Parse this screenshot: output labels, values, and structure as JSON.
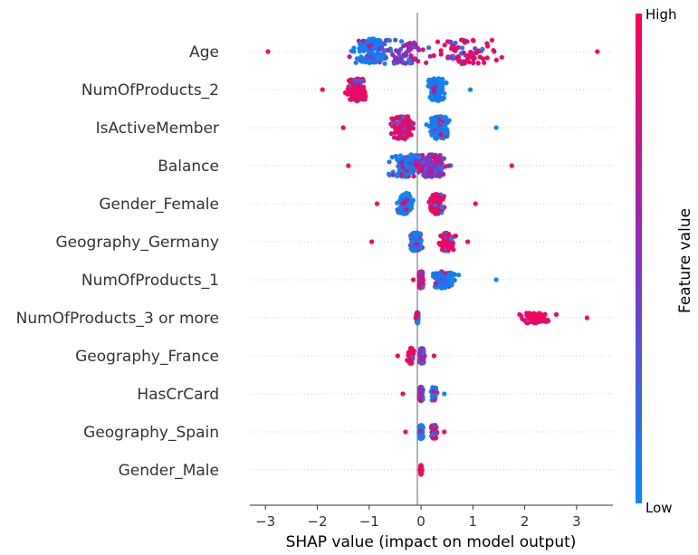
{
  "chart_data": {
    "type": "scatter",
    "subtype": "shap-beeswarm",
    "xlabel": "SHAP value (impact on model output)",
    "xlim": [
      -3.3,
      3.7
    ],
    "xticks": [
      -3,
      -2,
      -1,
      0,
      1,
      2,
      3
    ],
    "colorbar": {
      "title": "Feature value",
      "high_label": "High",
      "low_label": "Low",
      "low_color": "#008bfb",
      "high_color": "#ff0052",
      "mid_color": "#8a2ec0"
    },
    "grid": false,
    "features": [
      {
        "name": "Age",
        "min": -2.95,
        "max": 3.4,
        "spread": 0.85,
        "clusters": [
          {
            "center": -0.95,
            "width": 0.7,
            "weight": 0.45,
            "color": "low"
          },
          {
            "center": -0.3,
            "width": 0.9,
            "weight": 0.25,
            "color": "mixed"
          },
          {
            "center": 0.9,
            "width": 1.3,
            "weight": 0.3,
            "color": "high"
          }
        ]
      },
      {
        "name": "NumOfProducts_2",
        "min": -1.9,
        "max": 0.95,
        "spread": 0.75,
        "clusters": [
          {
            "center": -1.25,
            "width": 0.35,
            "weight": 0.55,
            "color": "high"
          },
          {
            "center": 0.3,
            "width": 0.3,
            "weight": 0.45,
            "color": "low"
          }
        ]
      },
      {
        "name": "IsActiveMember",
        "min": -1.5,
        "max": 1.45,
        "spread": 0.75,
        "clusters": [
          {
            "center": -0.35,
            "width": 0.4,
            "weight": 0.5,
            "color": "high"
          },
          {
            "center": 0.35,
            "width": 0.35,
            "weight": 0.5,
            "color": "low"
          }
        ]
      },
      {
        "name": "Balance",
        "min": -1.4,
        "max": 1.75,
        "spread": 0.75,
        "clusters": [
          {
            "center": -0.3,
            "width": 0.5,
            "weight": 0.4,
            "color": "low"
          },
          {
            "center": 0.2,
            "width": 0.6,
            "weight": 0.6,
            "color": "mixed"
          }
        ]
      },
      {
        "name": "Gender_Female",
        "min": -0.85,
        "max": 1.05,
        "spread": 0.7,
        "clusters": [
          {
            "center": -0.3,
            "width": 0.25,
            "weight": 0.5,
            "color": "low"
          },
          {
            "center": 0.3,
            "width": 0.25,
            "weight": 0.5,
            "color": "high"
          }
        ]
      },
      {
        "name": "Geography_Germany",
        "min": -0.95,
        "max": 0.9,
        "spread": 0.6,
        "clusters": [
          {
            "center": -0.1,
            "width": 0.2,
            "weight": 0.65,
            "color": "low"
          },
          {
            "center": 0.5,
            "width": 0.25,
            "weight": 0.35,
            "color": "high"
          }
        ]
      },
      {
        "name": "NumOfProducts_1",
        "min": -0.15,
        "max": 1.45,
        "spread": 0.55,
        "clusters": [
          {
            "center": 0.0,
            "width": 0.08,
            "weight": 0.65,
            "color": "high"
          },
          {
            "center": 0.45,
            "width": 0.45,
            "weight": 0.35,
            "color": "low"
          }
        ]
      },
      {
        "name": "NumOfProducts_3 or more",
        "min": -0.1,
        "max": 3.2,
        "spread": 0.35,
        "clusters": [
          {
            "center": -0.07,
            "width": 0.03,
            "weight": 0.75,
            "color": "low"
          },
          {
            "center": 2.2,
            "width": 0.55,
            "weight": 0.25,
            "color": "high"
          }
        ]
      },
      {
        "name": "Geography_France",
        "min": -0.45,
        "max": 0.25,
        "spread": 0.5,
        "clusters": [
          {
            "center": 0.02,
            "width": 0.08,
            "weight": 0.85,
            "color": "mixed"
          },
          {
            "center": -0.2,
            "width": 0.12,
            "weight": 0.15,
            "color": "high"
          }
        ]
      },
      {
        "name": "HasCrCard",
        "min": -0.35,
        "max": 0.45,
        "spread": 0.45,
        "clusters": [
          {
            "center": 0.0,
            "width": 0.06,
            "weight": 0.85,
            "color": "mixed"
          },
          {
            "center": 0.25,
            "width": 0.12,
            "weight": 0.15,
            "color": "low"
          }
        ]
      },
      {
        "name": "Geography_Spain",
        "min": -0.3,
        "max": 0.45,
        "spread": 0.45,
        "clusters": [
          {
            "center": 0.0,
            "width": 0.06,
            "weight": 0.8,
            "color": "low"
          },
          {
            "center": 0.25,
            "width": 0.12,
            "weight": 0.2,
            "color": "high"
          }
        ]
      },
      {
        "name": "Gender_Male",
        "min": -0.02,
        "max": 0.02,
        "spread": 0.3,
        "clusters": [
          {
            "center": 0.0,
            "width": 0.01,
            "weight": 1.0,
            "color": "high"
          }
        ]
      }
    ]
  }
}
